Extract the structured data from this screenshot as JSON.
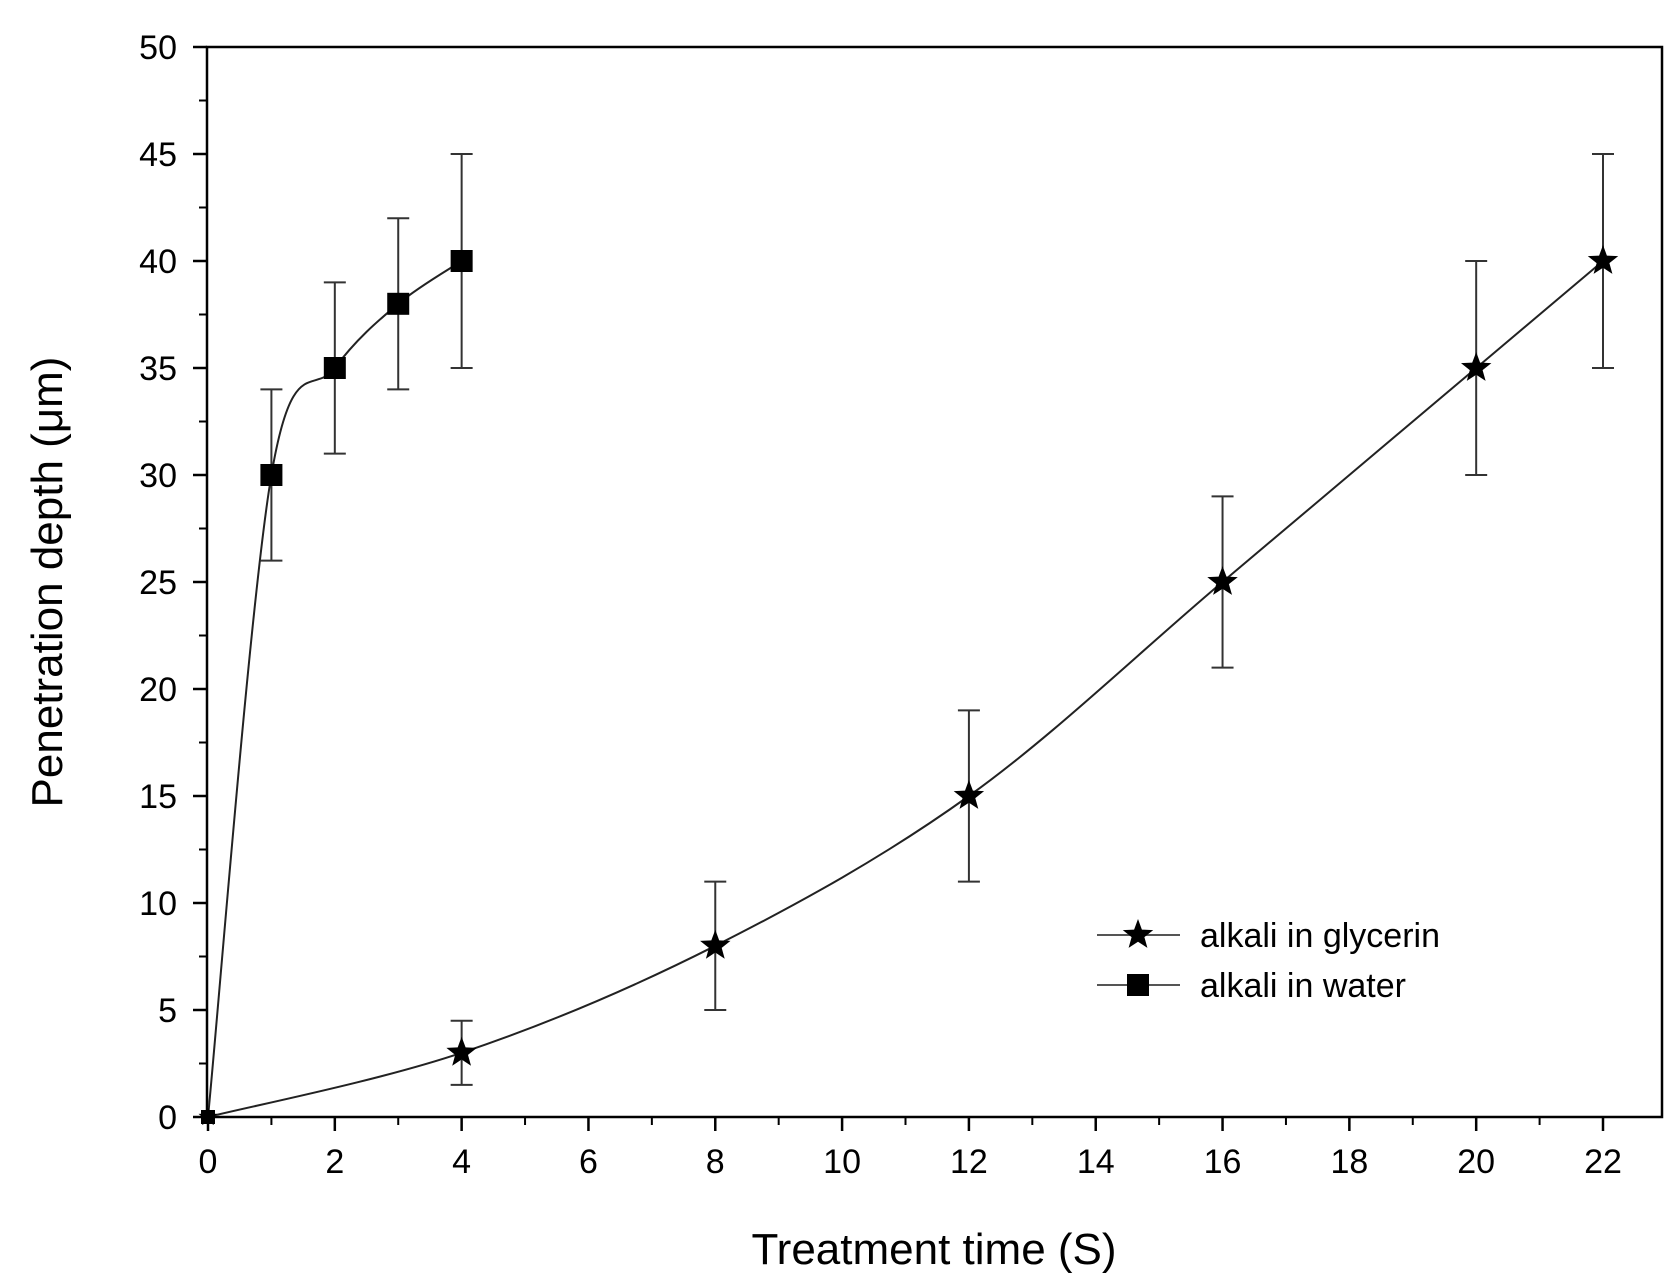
{
  "chart_data": {
    "type": "line",
    "title": "",
    "xlabel": "Treatment time (S)",
    "ylabel": "Penetration depth (μm)",
    "xlim": [
      0,
      23
    ],
    "ylim": [
      0,
      50
    ],
    "x_ticks": [
      0,
      2,
      4,
      6,
      8,
      10,
      12,
      14,
      16,
      18,
      20,
      22
    ],
    "y_ticks": [
      0,
      5,
      10,
      15,
      20,
      25,
      30,
      35,
      40,
      45,
      50
    ],
    "legend_position": "lower-right",
    "series": [
      {
        "name": "alkali in glycerin",
        "marker": "star",
        "color": "#000000",
        "x": [
          0,
          4,
          8,
          12,
          16,
          20,
          22
        ],
        "y": [
          0,
          3,
          8,
          15,
          25,
          35,
          40
        ],
        "error": [
          0,
          1.5,
          3,
          4,
          4,
          5,
          5
        ]
      },
      {
        "name": "alkali in water",
        "marker": "square",
        "color": "#000000",
        "x": [
          0,
          1,
          2,
          3,
          4
        ],
        "y": [
          0,
          30,
          35,
          38,
          40
        ],
        "error": [
          0,
          4,
          4,
          4,
          5
        ]
      }
    ]
  }
}
